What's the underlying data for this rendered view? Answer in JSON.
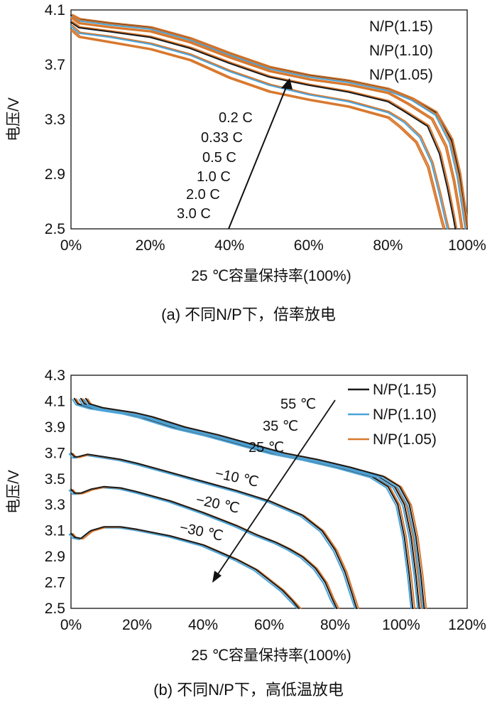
{
  "chart_data": [
    {
      "type": "line",
      "caption": "(a) 不同N/P下，倍率放电",
      "xlabel": "25 ℃容量保持率(100%)",
      "ylabel": "电压/V",
      "xlim": [
        0,
        100
      ],
      "ylim": [
        2.5,
        4.1
      ],
      "x_ticks": [
        "0%",
        "20%",
        "40%",
        "60%",
        "80%",
        "100%"
      ],
      "x_tick_values": [
        0,
        20,
        40,
        60,
        80,
        100
      ],
      "y_ticks": [
        "2.5",
        "2.9",
        "3.3",
        "3.7",
        "4.1"
      ],
      "y_tick_values": [
        2.5,
        2.9,
        3.3,
        3.7,
        4.1
      ],
      "legend": [
        "N/P(1.15)",
        "N/P(1.10)",
        "N/P(1.05)"
      ],
      "legend_position": "top-right",
      "annotations": [
        "0.2 C",
        "0.33 C",
        "0.5 C",
        "1.0 C",
        "2.0 C",
        "3.0 C"
      ],
      "colors": {
        "np115": "#1a1a1a",
        "np110": "#4aa3d8",
        "np105": "#d8782e"
      },
      "series": [
        {
          "name": "0.2 C",
          "np": "N/P(1.15)",
          "x": [
            0,
            2,
            10,
            20,
            30,
            40,
            50,
            60,
            70,
            80,
            86,
            92,
            96,
            98,
            99.5,
            100
          ],
          "y": [
            4.06,
            4.03,
            4.0,
            3.97,
            3.89,
            3.78,
            3.68,
            3.62,
            3.58,
            3.52,
            3.45,
            3.35,
            3.15,
            2.9,
            2.6,
            2.5
          ]
        },
        {
          "name": "0.33 C",
          "np": "N/P(1.10)",
          "x": [
            0,
            2,
            10,
            20,
            30,
            40,
            50,
            60,
            70,
            80,
            86,
            92,
            95.5,
            97.5,
            99,
            99.5
          ],
          "y": [
            4.05,
            4.02,
            3.99,
            3.96,
            3.88,
            3.77,
            3.67,
            3.61,
            3.57,
            3.51,
            3.44,
            3.33,
            3.13,
            2.88,
            2.6,
            2.5
          ]
        },
        {
          "name": "0.5 C",
          "np": "N/P(1.05)",
          "x": [
            0,
            2,
            10,
            20,
            30,
            40,
            50,
            60,
            70,
            80,
            85,
            91,
            94.5,
            96.5,
            98,
            98.5
          ],
          "y": [
            4.04,
            4.0,
            3.97,
            3.94,
            3.86,
            3.75,
            3.65,
            3.59,
            3.55,
            3.49,
            3.41,
            3.3,
            3.1,
            2.85,
            2.6,
            2.5
          ]
        },
        {
          "name": "1.0 C",
          "np": "N/P(1.15)",
          "x": [
            0,
            2,
            10,
            20,
            30,
            40,
            50,
            60,
            70,
            80,
            84,
            90,
            93,
            95,
            96.5,
            97
          ],
          "y": [
            4.01,
            3.97,
            3.94,
            3.9,
            3.82,
            3.71,
            3.61,
            3.55,
            3.5,
            3.43,
            3.36,
            3.25,
            3.05,
            2.8,
            2.58,
            2.5
          ]
        },
        {
          "name": "2.0 C",
          "np": "N/P(1.10)",
          "x": [
            0,
            2,
            10,
            20,
            30,
            40,
            50,
            60,
            70,
            80,
            84,
            88,
            91,
            93,
            94.5,
            95
          ],
          "y": [
            3.98,
            3.93,
            3.9,
            3.85,
            3.77,
            3.65,
            3.55,
            3.48,
            3.43,
            3.35,
            3.28,
            3.17,
            2.98,
            2.75,
            2.56,
            2.5
          ]
        },
        {
          "name": "3.0 C",
          "np": "N/P(1.05)",
          "x": [
            0,
            2,
            10,
            20,
            30,
            40,
            50,
            60,
            70,
            80,
            83,
            87,
            90,
            92,
            93.5,
            94
          ],
          "y": [
            3.95,
            3.9,
            3.86,
            3.81,
            3.73,
            3.6,
            3.5,
            3.44,
            3.39,
            3.31,
            3.24,
            3.13,
            2.95,
            2.72,
            2.55,
            2.5
          ]
        }
      ]
    },
    {
      "type": "line",
      "caption": "(b) 不同N/P下，高低温放电",
      "xlabel": "25 ℃容量保持率(100%)",
      "ylabel": "电压/V",
      "xlim": [
        0,
        120
      ],
      "ylim": [
        2.5,
        4.3
      ],
      "x_ticks": [
        "0%",
        "20%",
        "40%",
        "60%",
        "80%",
        "100%",
        "120%"
      ],
      "x_tick_values": [
        0,
        20,
        40,
        60,
        80,
        100,
        120
      ],
      "y_ticks": [
        "2.5",
        "2.7",
        "2.9",
        "3.1",
        "3.3",
        "3.5",
        "3.7",
        "3.9",
        "4.1",
        "4.3"
      ],
      "y_tick_values": [
        2.5,
        2.7,
        2.9,
        3.1,
        3.3,
        3.5,
        3.7,
        3.9,
        4.1,
        4.3
      ],
      "legend": [
        "N/P(1.15)",
        "N/P(1.10)",
        "N/P(1.05)"
      ],
      "legend_position": "top-right",
      "annotations": [
        "55 ℃",
        "35 ℃",
        "25 ℃",
        "−10 ℃",
        "−20 ℃",
        "−30 ℃"
      ],
      "colors": {
        "np115": "#1a1a1a",
        "np110": "#4aa3d8",
        "np105": "#d8782e"
      },
      "series": [
        {
          "name": "55 ℃",
          "offset": 1.0,
          "x": [
            0,
            1,
            5,
            10,
            15,
            20,
            30,
            40,
            50,
            60,
            70,
            80,
            90,
            95,
            98,
            100,
            101.5,
            102.5
          ],
          "y": [
            4.12,
            4.08,
            4.05,
            4.03,
            4.01,
            3.98,
            3.9,
            3.84,
            3.77,
            3.7,
            3.65,
            3.59,
            3.52,
            3.44,
            3.3,
            3.05,
            2.75,
            2.5
          ]
        },
        {
          "name": "35 ℃",
          "offset": 3.0,
          "x": [
            0,
            1,
            5,
            10,
            15,
            20,
            30,
            40,
            50,
            60,
            70,
            80,
            90,
            95,
            98,
            100,
            101.5,
            102.5
          ],
          "y": [
            4.12,
            4.08,
            4.05,
            4.03,
            4.01,
            3.98,
            3.9,
            3.84,
            3.77,
            3.7,
            3.65,
            3.59,
            3.52,
            3.44,
            3.3,
            3.05,
            2.75,
            2.5
          ]
        },
        {
          "name": "25 ℃",
          "offset": 4.5,
          "x": [
            0,
            1,
            5,
            10,
            15,
            20,
            30,
            40,
            50,
            60,
            70,
            80,
            90,
            95,
            98,
            100,
            101.5,
            102.5
          ],
          "y": [
            4.12,
            4.08,
            4.05,
            4.03,
            4.01,
            3.98,
            3.9,
            3.84,
            3.77,
            3.7,
            3.65,
            3.59,
            3.52,
            3.44,
            3.3,
            3.05,
            2.75,
            2.5
          ]
        },
        {
          "name": "−10 ℃",
          "offset": 0,
          "x": [
            0,
            1,
            2,
            5,
            10,
            15,
            20,
            30,
            40,
            50,
            60,
            70,
            76,
            80,
            83,
            85,
            86.5
          ],
          "y": [
            3.7,
            3.67,
            3.67,
            3.69,
            3.67,
            3.65,
            3.62,
            3.55,
            3.48,
            3.41,
            3.33,
            3.22,
            3.1,
            2.95,
            2.78,
            2.62,
            2.5
          ]
        },
        {
          "name": "−20 ℃",
          "offset": 0,
          "x": [
            0,
            1,
            3,
            6,
            10,
            15,
            20,
            30,
            40,
            50,
            56,
            62,
            66,
            70,
            74,
            77,
            79,
            80.5
          ],
          "y": [
            3.42,
            3.39,
            3.39,
            3.42,
            3.44,
            3.43,
            3.4,
            3.33,
            3.24,
            3.14,
            3.07,
            3.01,
            2.96,
            2.9,
            2.81,
            2.7,
            2.58,
            2.5
          ]
        },
        {
          "name": "−30 ℃",
          "offset": 0,
          "x": [
            0,
            1,
            3,
            6,
            10,
            15,
            20,
            30,
            40,
            50,
            56,
            60,
            64,
            67,
            69
          ],
          "y": [
            3.08,
            3.05,
            3.04,
            3.1,
            3.13,
            3.13,
            3.11,
            3.06,
            2.99,
            2.88,
            2.8,
            2.72,
            2.64,
            2.56,
            2.5
          ]
        }
      ]
    }
  ]
}
